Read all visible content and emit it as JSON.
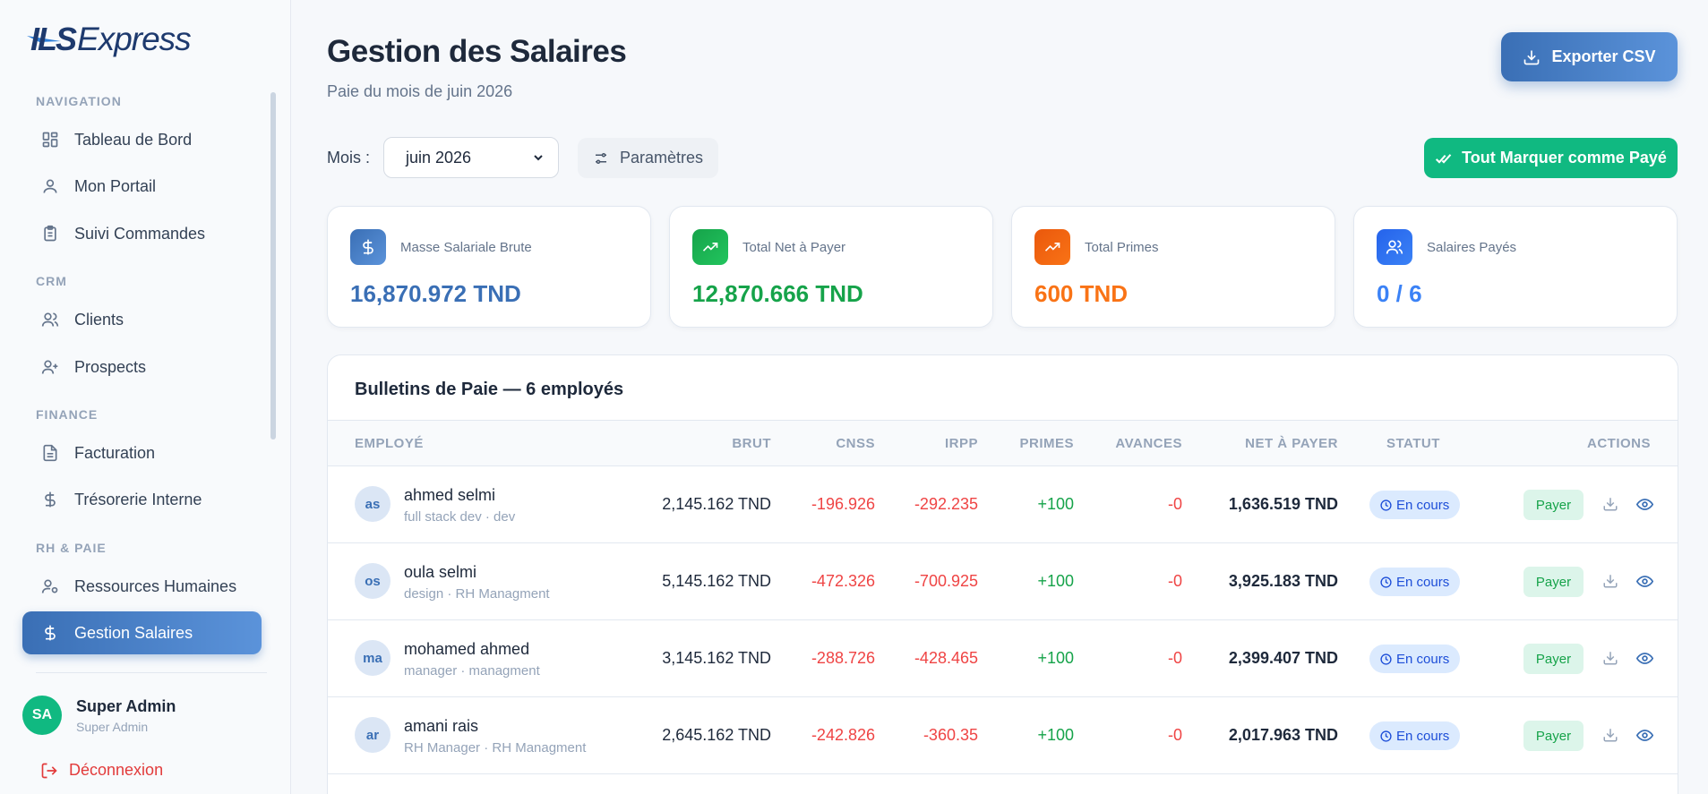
{
  "brand": {
    "mark": "ILS",
    "name": "Express"
  },
  "sidebar": {
    "sections": [
      {
        "title": "NAVIGATION"
      },
      {
        "title": "CRM"
      },
      {
        "title": "FINANCE"
      },
      {
        "title": "RH & PAIE"
      }
    ],
    "items": [
      {
        "label": "Tableau de Bord",
        "icon": "dashboard-icon"
      },
      {
        "label": "Mon Portail",
        "icon": "user-icon"
      },
      {
        "label": "Suivi Commandes",
        "icon": "clipboard-icon"
      },
      {
        "label": "Clients",
        "icon": "users-icon"
      },
      {
        "label": "Prospects",
        "icon": "user-plus-icon"
      },
      {
        "label": "Facturation",
        "icon": "file-icon"
      },
      {
        "label": "Trésorerie Interne",
        "icon": "dollar-icon"
      },
      {
        "label": "Ressources Humaines",
        "icon": "user-cog-icon"
      },
      {
        "label": "Gestion Salaires",
        "icon": "dollar-icon",
        "active": true
      }
    ],
    "user": {
      "initials": "SA",
      "name": "Super Admin",
      "role": "Super Admin"
    },
    "logout": "Déconnexion"
  },
  "header": {
    "title": "Gestion des Salaires",
    "subtitle": "Paie du mois de juin 2026",
    "export_label": "Exporter CSV"
  },
  "toolbar": {
    "mois_label": "Mois :",
    "mois_value": "juin 2026",
    "params_label": "Paramètres",
    "mark_all_label": "Tout Marquer comme Payé"
  },
  "stats": [
    {
      "label": "Masse Salariale Brute",
      "value": "16,870.972 TND",
      "color": "#3a6fb5",
      "icon": "dollar-icon"
    },
    {
      "label": "Total Net à Payer",
      "value": "12,870.666 TND",
      "color": "#16a34a",
      "icon": "trending-up-icon"
    },
    {
      "label": "Total Primes",
      "value": "600 TND",
      "color": "#f97316",
      "icon": "trending-up-icon"
    },
    {
      "label": "Salaires Payés",
      "value": "0 / 6",
      "color": "#3b82f6",
      "icon": "users-icon"
    }
  ],
  "table": {
    "title": "Bulletins de Paie — 6 employés",
    "headers": {
      "employe": "EMPLOYÉ",
      "brut": "BRUT",
      "cnss": "CNSS",
      "irpp": "IRPP",
      "primes": "PRIMES",
      "avances": "AVANCES",
      "net": "NET À PAYER",
      "statut": "STATUT",
      "actions": "ACTIONS"
    },
    "rows": [
      {
        "initials": "as",
        "name": "ahmed selmi",
        "sub": "full stack dev · dev",
        "brut": "2,145.162 TND",
        "cnss": "-196.926",
        "irpp": "-292.235",
        "primes": "+100",
        "avances": "-0",
        "net": "1,636.519 TND",
        "statut": "En cours",
        "pay": "Payer"
      },
      {
        "initials": "os",
        "name": "oula selmi",
        "sub": "design · RH Managment",
        "brut": "5,145.162 TND",
        "cnss": "-472.326",
        "irpp": "-700.925",
        "primes": "+100",
        "avances": "-0",
        "net": "3,925.183 TND",
        "statut": "En cours",
        "pay": "Payer"
      },
      {
        "initials": "ma",
        "name": "mohamed ahmed",
        "sub": "manager · managment",
        "brut": "3,145.162 TND",
        "cnss": "-288.726",
        "irpp": "-428.465",
        "primes": "+100",
        "avances": "-0",
        "net": "2,399.407 TND",
        "statut": "En cours",
        "pay": "Payer"
      },
      {
        "initials": "ar",
        "name": "amani rais",
        "sub": "RH Manager · RH Managment",
        "brut": "2,645.162 TND",
        "cnss": "-242.826",
        "irpp": "-360.35",
        "primes": "+100",
        "avances": "-0",
        "net": "2,017.963 TND",
        "statut": "En cours",
        "pay": "Payer"
      }
    ]
  }
}
